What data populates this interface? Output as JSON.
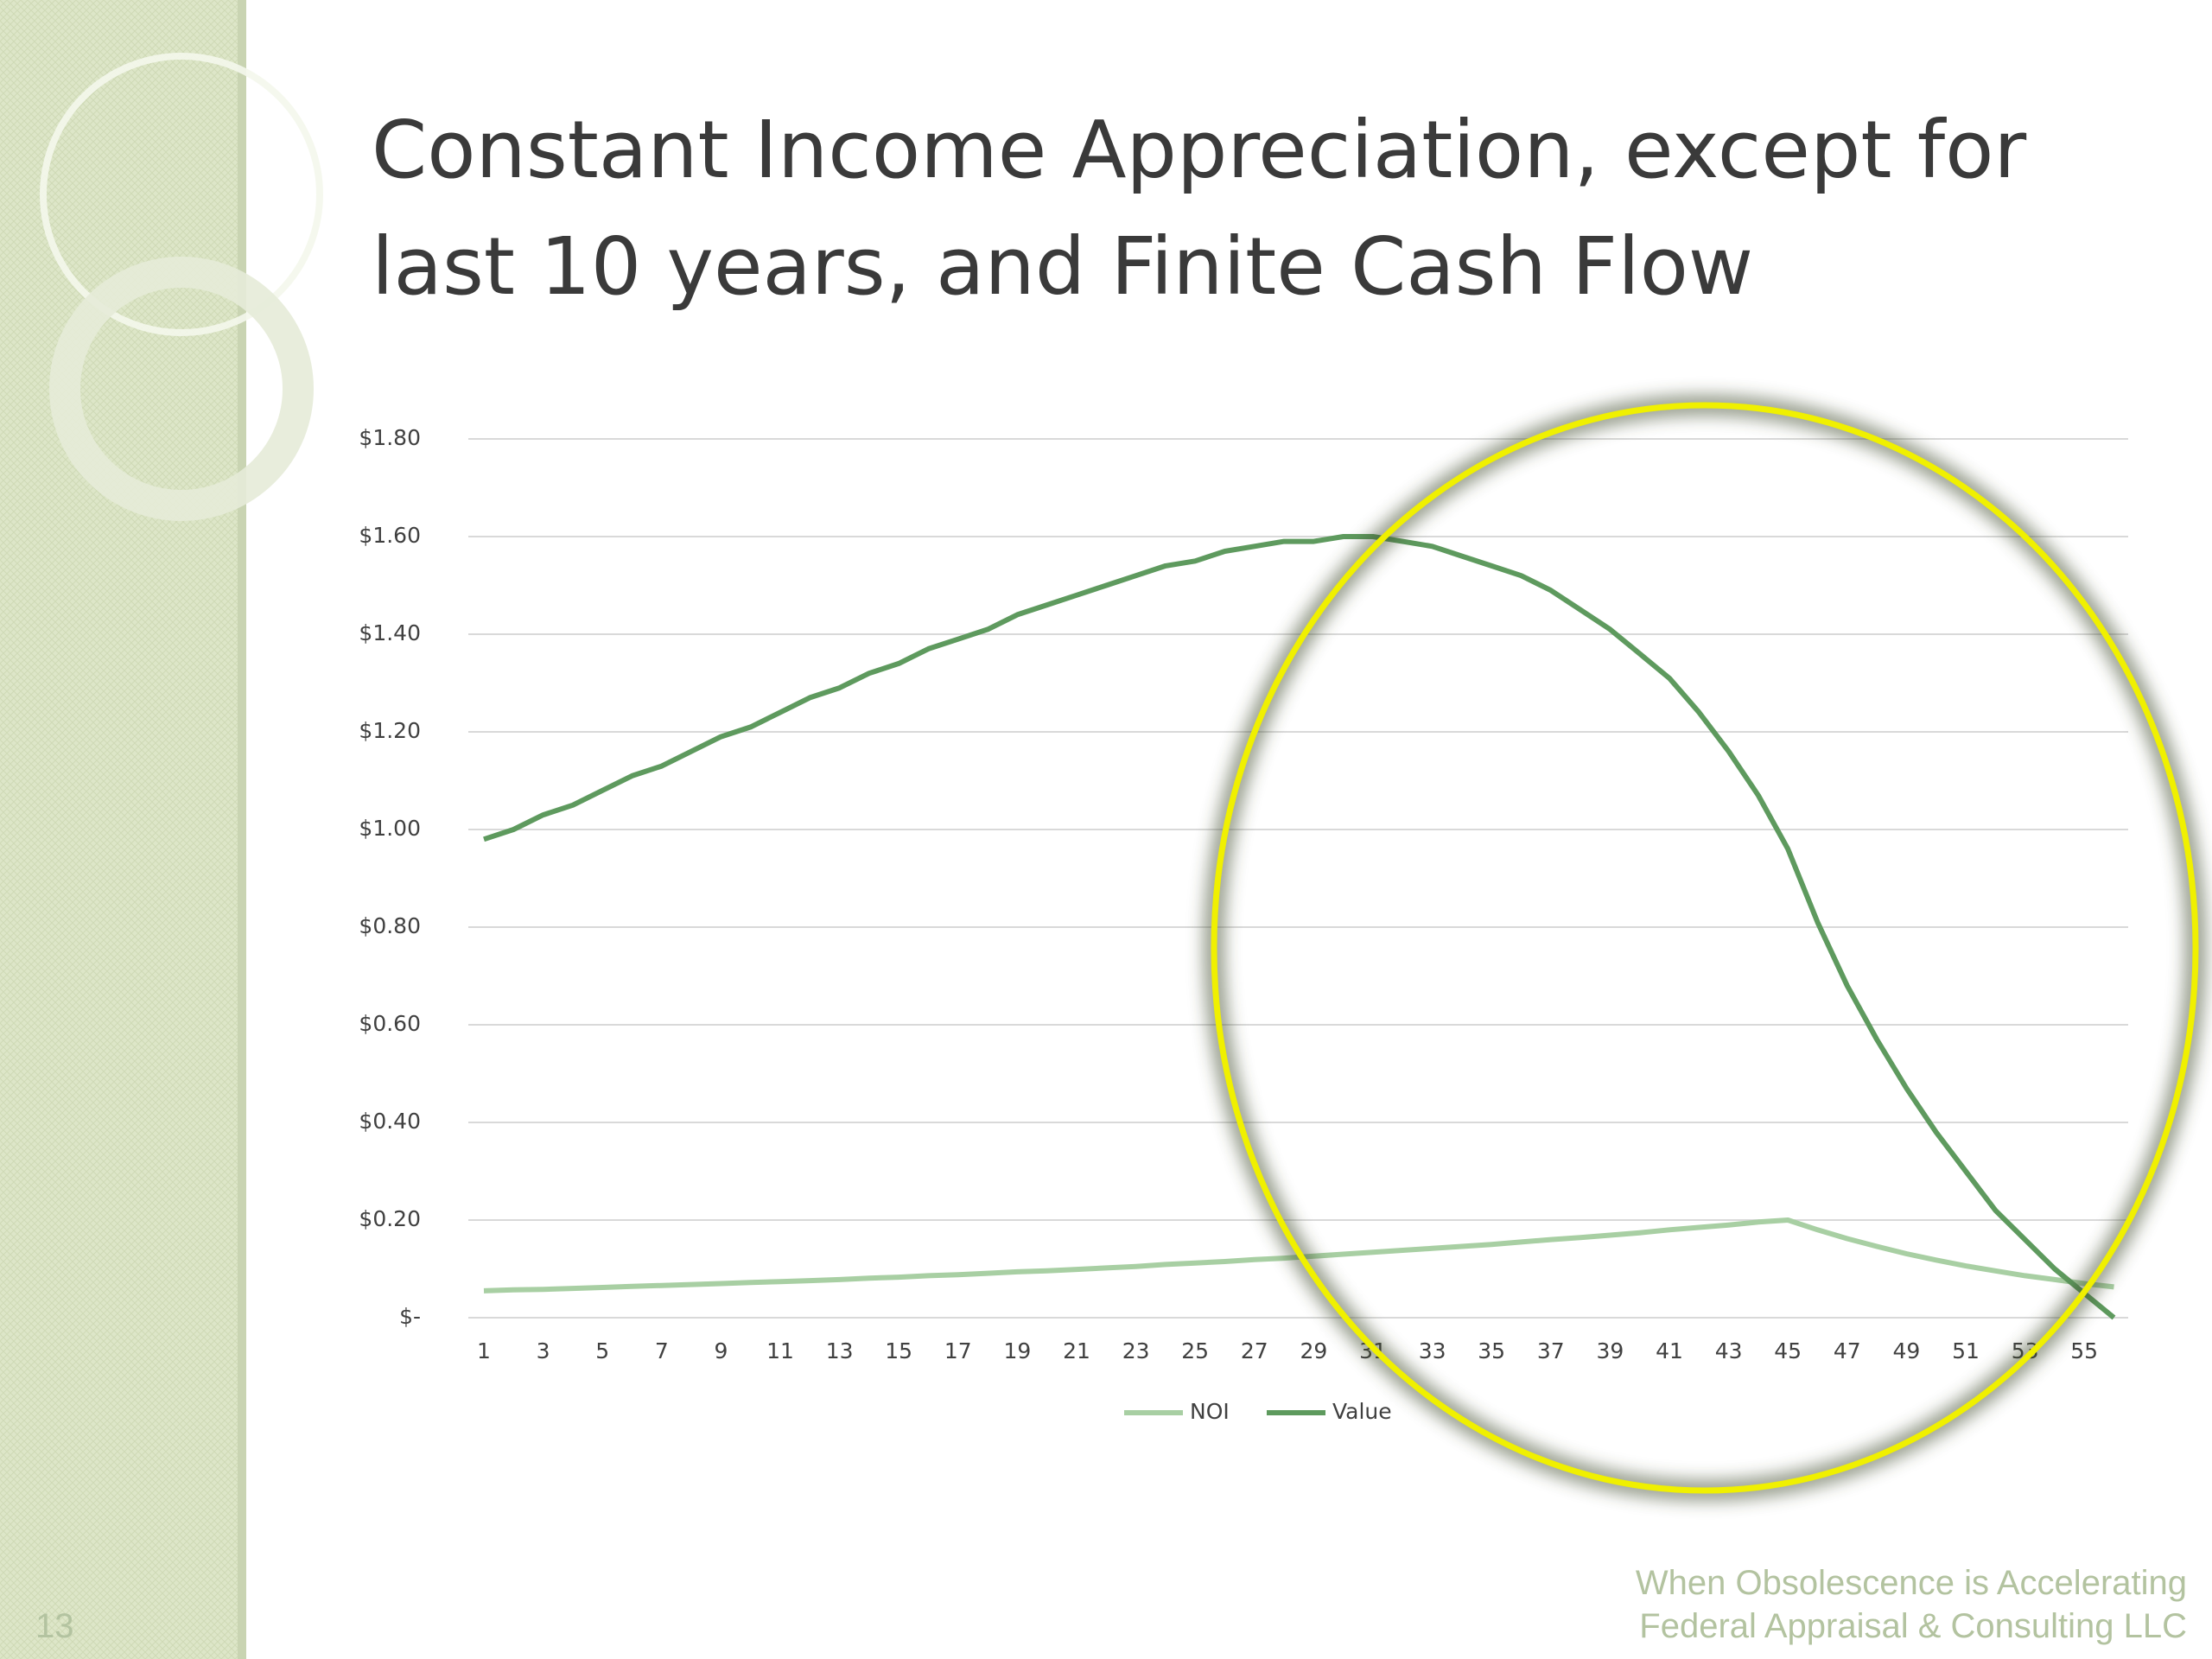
{
  "slide_number": "13",
  "footer": [
    "When Obsolescence is Accelerating",
    "Federal Appraisal & Consulting LLC"
  ],
  "chart_data": {
    "type": "line",
    "title_lines": [
      "Constant Income Appreciation, except for",
      "last 10 years, and Finite Cash Flow"
    ],
    "categories": [
      "1",
      null,
      "3",
      null,
      "5",
      null,
      "7",
      null,
      "9",
      null,
      "11",
      null,
      "13",
      null,
      "15",
      null,
      "17",
      null,
      "19",
      null,
      "21",
      null,
      "23",
      null,
      "25",
      null,
      "27",
      null,
      "29",
      null,
      "31",
      null,
      "33",
      null,
      "35",
      null,
      "37",
      null,
      "39",
      null,
      "41",
      null,
      "43",
      null,
      "45",
      null,
      "47",
      null,
      "49",
      null,
      "51",
      null,
      "53",
      null,
      "55",
      null
    ],
    "series": [
      {
        "name": "NOI",
        "color": "#a8cfa3",
        "values": [
          0.055,
          0.057,
          0.058,
          0.06,
          0.062,
          0.064,
          0.066,
          0.068,
          0.07,
          0.072,
          0.074,
          0.076,
          0.078,
          0.081,
          0.083,
          0.086,
          0.088,
          0.091,
          0.094,
          0.096,
          0.099,
          0.102,
          0.105,
          0.109,
          0.112,
          0.115,
          0.119,
          0.122,
          0.126,
          0.13,
          0.134,
          0.138,
          0.142,
          0.146,
          0.15,
          0.155,
          0.16,
          0.164,
          0.169,
          0.174,
          0.18,
          0.185,
          0.19,
          0.196,
          0.2,
          0.18,
          0.162,
          0.146,
          0.131,
          0.118,
          0.106,
          0.096,
          0.086,
          0.078,
          0.07,
          0.063
        ]
      },
      {
        "name": "Value",
        "color": "#5e9a5e",
        "values": [
          0.98,
          1.0,
          1.03,
          1.05,
          1.08,
          1.11,
          1.13,
          1.16,
          1.19,
          1.21,
          1.24,
          1.27,
          1.29,
          1.32,
          1.34,
          1.37,
          1.39,
          1.41,
          1.44,
          1.46,
          1.48,
          1.5,
          1.52,
          1.54,
          1.55,
          1.57,
          1.58,
          1.59,
          1.59,
          1.6,
          1.6,
          1.59,
          1.58,
          1.56,
          1.54,
          1.52,
          1.49,
          1.45,
          1.41,
          1.36,
          1.31,
          1.24,
          1.16,
          1.07,
          0.96,
          0.81,
          0.68,
          0.57,
          0.47,
          0.38,
          0.3,
          0.22,
          0.16,
          0.1,
          0.05,
          0.0
        ]
      }
    ],
    "ylim": [
      0,
      1.8
    ],
    "yticks": [
      {
        "value": 0,
        "label": "$-"
      },
      {
        "value": 0.2,
        "label": "$0.20"
      },
      {
        "value": 0.4,
        "label": "$0.40"
      },
      {
        "value": 0.6,
        "label": "$0.60"
      },
      {
        "value": 0.8,
        "label": "$0.80"
      },
      {
        "value": 1.0,
        "label": "$1.00"
      },
      {
        "value": 1.2,
        "label": "$1.20"
      },
      {
        "value": 1.4,
        "label": "$1.40"
      },
      {
        "value": 1.6,
        "label": "$1.60"
      },
      {
        "value": 1.8,
        "label": "$1.80"
      }
    ],
    "grid": true
  }
}
